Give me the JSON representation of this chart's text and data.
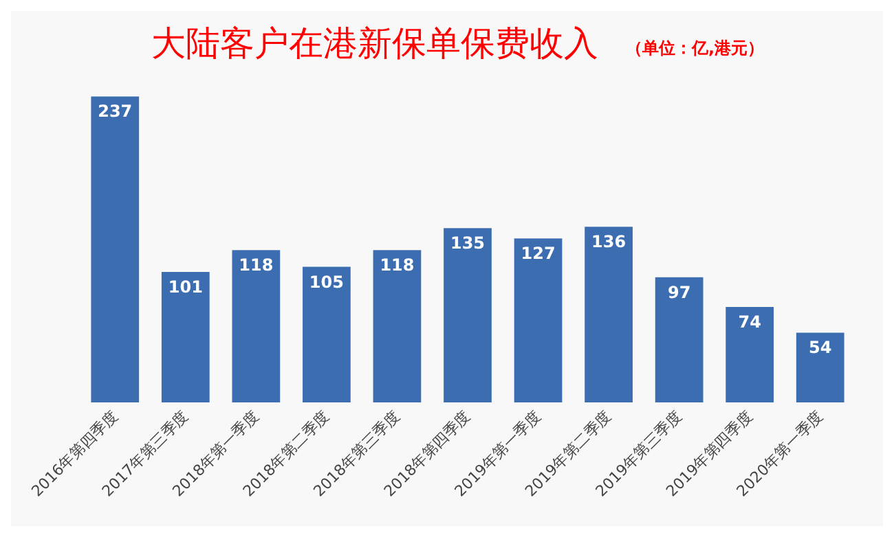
{
  "chart_data": {
    "type": "bar",
    "title": "大陆客户在港新保单保费收入",
    "subtitle": "（单位：亿,港元）",
    "categories": [
      "2016年第四季度",
      "2017年第三季度",
      "2018年第一季度",
      "2018年第二季度",
      "2018年第三季度",
      "2018年第四季度",
      "2019年第一季度",
      "2019年第二季度",
      "2019年第三季度",
      "2019年第四季度",
      "2020年第一季度"
    ],
    "values": [
      237,
      101,
      118,
      105,
      118,
      135,
      127,
      136,
      97,
      74,
      54
    ],
    "color": "#3c6db0",
    "data_labels": true,
    "tick_labels": "x"
  }
}
